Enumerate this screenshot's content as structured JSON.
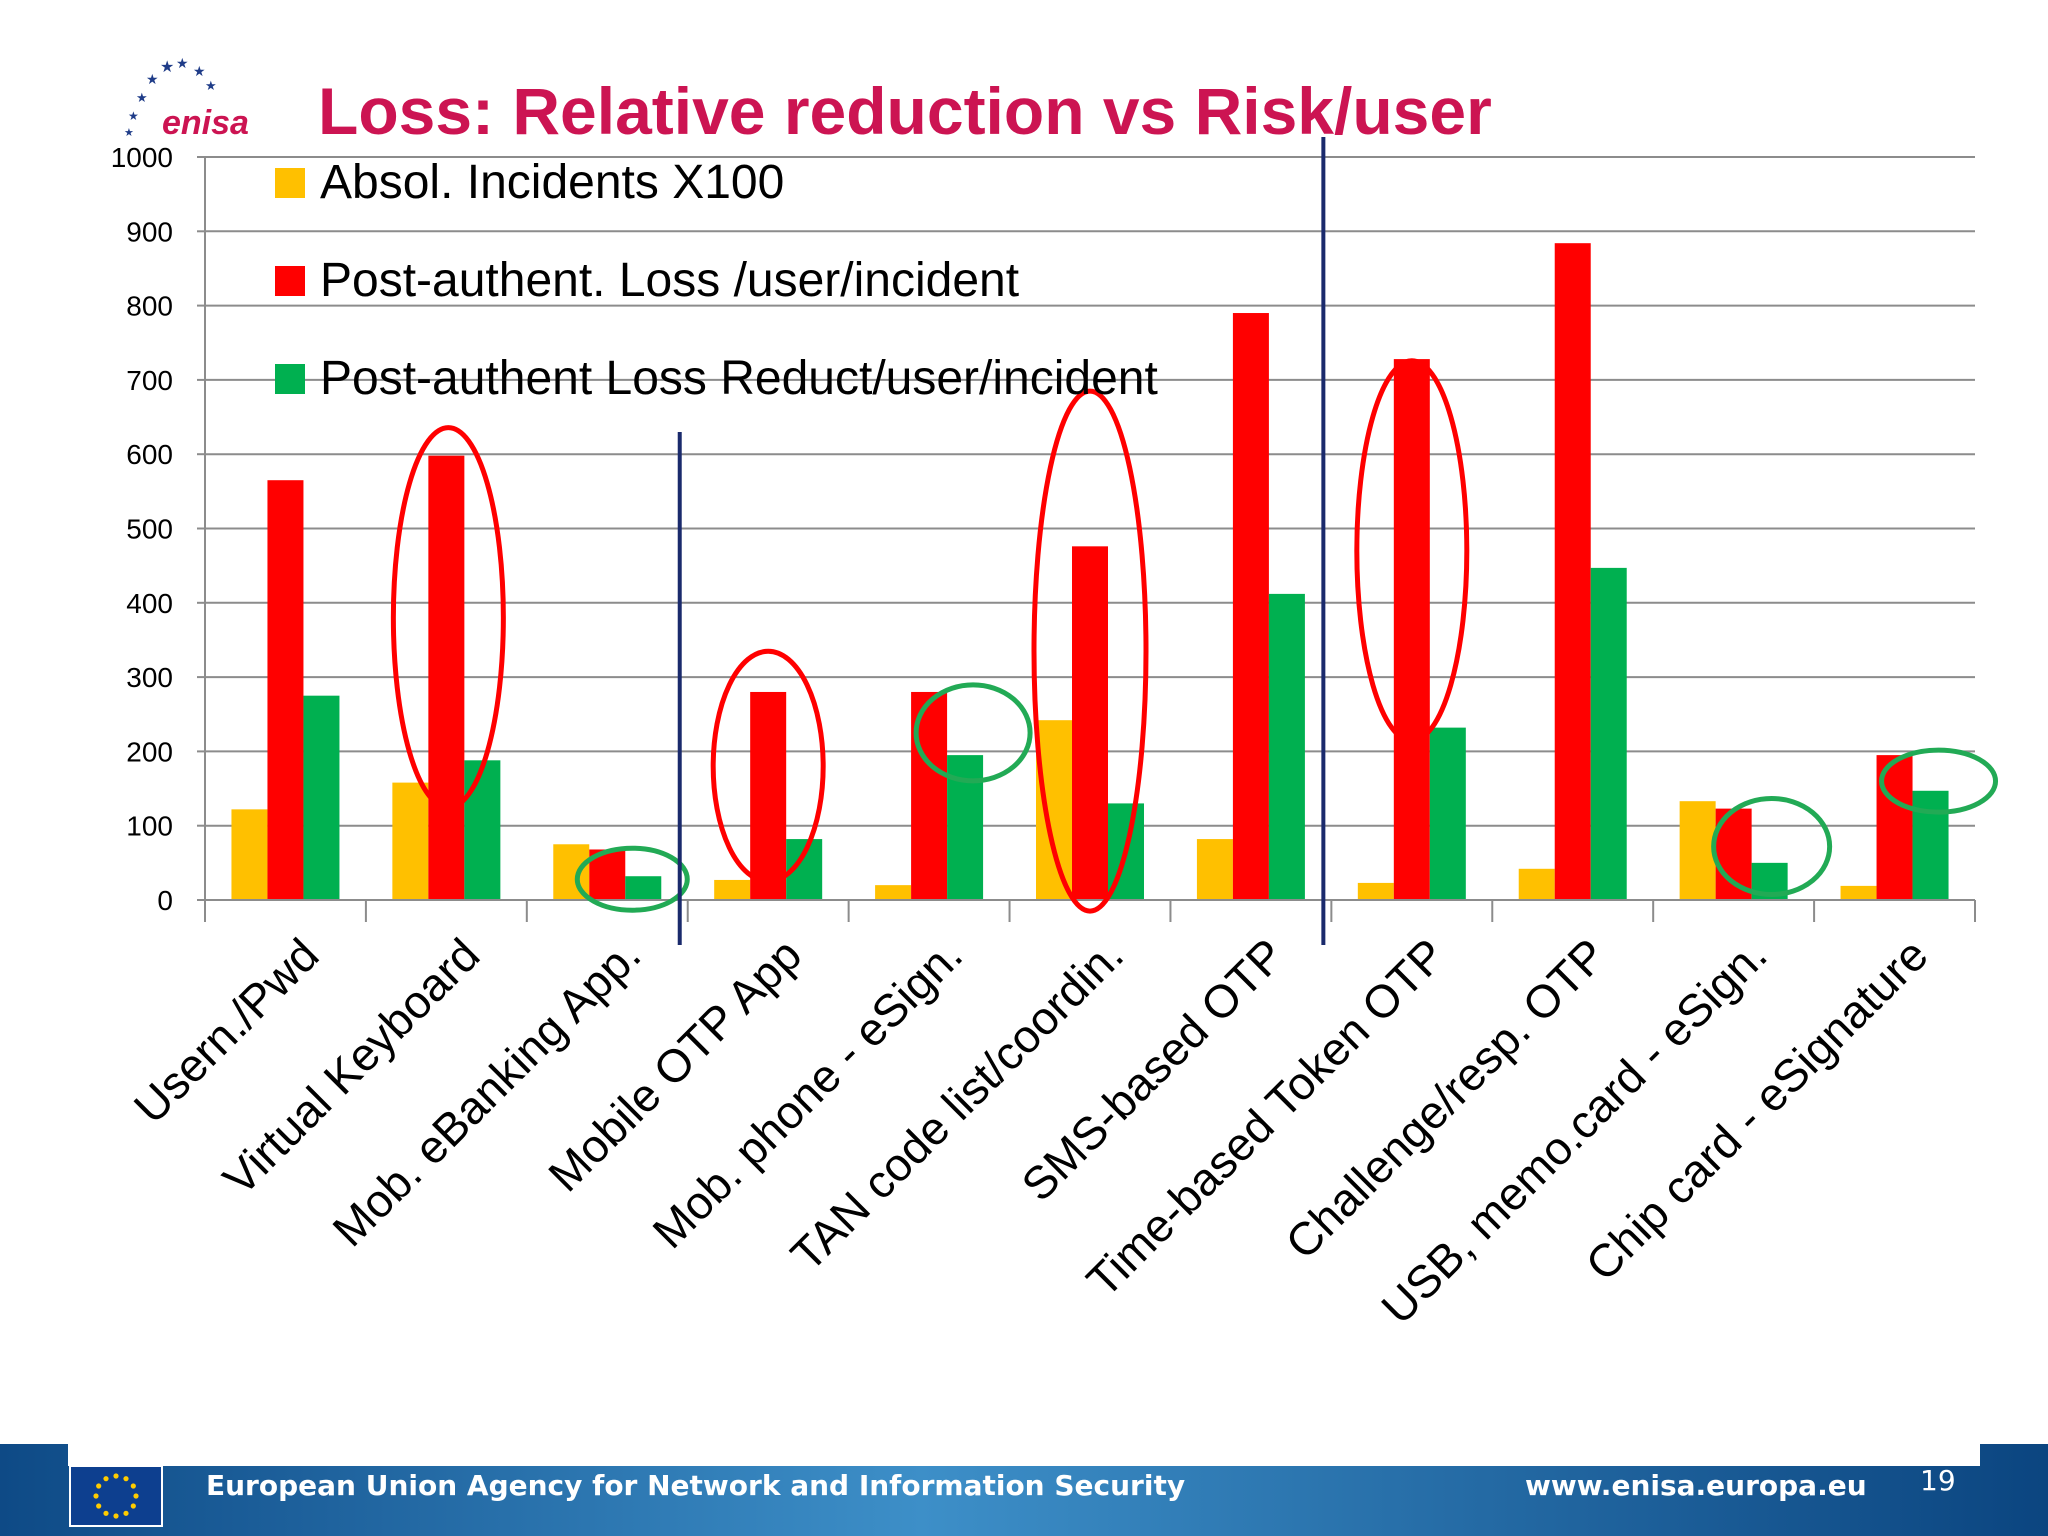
{
  "slide": {
    "logo_text": "enisa",
    "title": "Loss: Relative reduction vs Risk/user",
    "title_color": "#cc1452",
    "footer": {
      "agency": "European Union Agency for Network and Information Security",
      "website": "www.enisa.europa.eu",
      "page_number": "19"
    }
  },
  "chart_data": {
    "type": "bar",
    "title": "",
    "xlabel": "",
    "ylabel": "",
    "ylim": [
      0,
      1000
    ],
    "yticks": [
      "0",
      "100",
      "200",
      "300",
      "400",
      "500",
      "600",
      "700",
      "800",
      "900",
      "1000"
    ],
    "grid": true,
    "legend_position": "top-left",
    "categories": [
      "Usern./Pwd",
      "Virtual Keyboard",
      "Mob. eBanking App.",
      "Mobile OTP App",
      "Mob. phone - eSign.",
      "TAN code list/coordin.",
      "SMS-based OTP",
      "Time-based Token OTP",
      "Challenge/resp. OTP",
      "USB, memo.card - eSign.",
      "Chip card - eSignature"
    ],
    "series": [
      {
        "name": "Absol. Incidents X100",
        "color": "#ffc000",
        "values": [
          122,
          158,
          75,
          27,
          20,
          242,
          82,
          23,
          42,
          133,
          19
        ]
      },
      {
        "name": "Post-authent. Loss /user/incident",
        "color": "#ff0000",
        "values": [
          565,
          598,
          68,
          280,
          280,
          476,
          790,
          728,
          884,
          123,
          195
        ]
      },
      {
        "name": "Post-authent Loss Reduct/user/incident",
        "color": "#00b050",
        "values": [
          275,
          188,
          32,
          82,
          195,
          130,
          412,
          232,
          447,
          50,
          147
        ]
      }
    ],
    "annotations": {
      "red_ellipses_around_categories": [
        "Virtual Keyboard",
        "Mobile OTP App",
        "TAN code list/coordin.",
        "Time-based Token OTP"
      ],
      "green_ellipses_around_categories": [
        "Mob. eBanking App.",
        "Mob. phone - eSign.",
        "USB, memo.card - eSign.",
        "Chip card - eSignature"
      ],
      "vertical_divider_lines_after_categories": [
        "Mob. eBanking App.",
        "SMS-based OTP"
      ]
    }
  }
}
